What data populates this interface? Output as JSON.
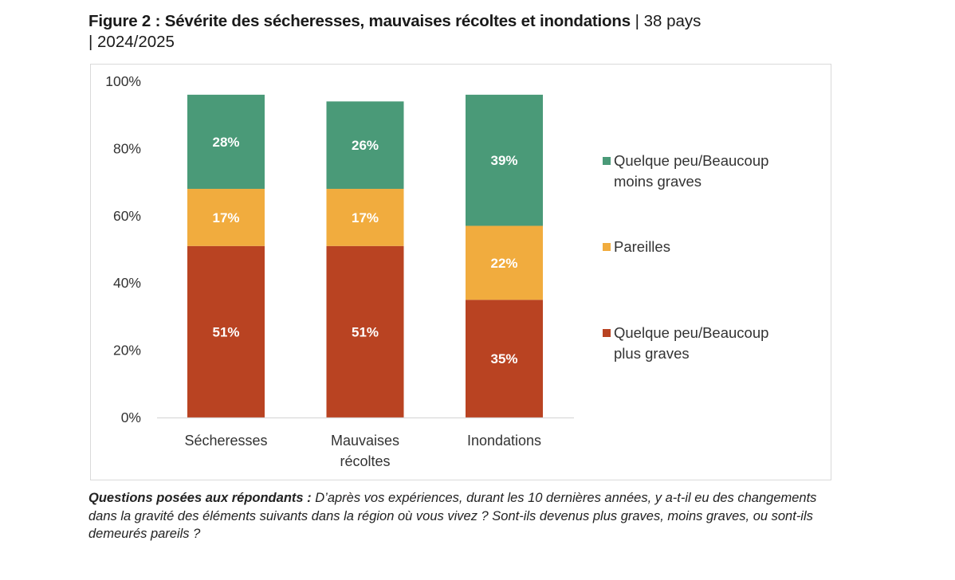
{
  "figure": {
    "title_bold": "Figure 2 : Sévérite des sécheresses, mauvaises récoltes et inondations",
    "title_meta_1": " | 38 pays",
    "title_meta_2": "| 2024/2025"
  },
  "footnote": {
    "label": "Questions posées aux répondants :",
    "text": " D’après vos expériences, durant les 10 dernières années, y a-t-il eu des changements dans la gravité des éléments suivants dans la région où vous vivez ? Sont-ils devenus plus graves, moins graves, ou sont-ils demeurés pareils ?"
  },
  "chart_data": {
    "type": "bar",
    "stacked": true,
    "title": "Figure 2 : Sévérite des sécheresses, mauvaises récoltes et inondations | 38 pays | 2024/2025",
    "xlabel": "",
    "ylabel": "",
    "categories": [
      "Sécheresses",
      "Mauvaises récoltes",
      "Inondations"
    ],
    "category_lines": [
      [
        "Sécheresses"
      ],
      [
        "Mauvaises",
        "récoltes"
      ],
      [
        "Inondations"
      ]
    ],
    "ylim": [
      0,
      100
    ],
    "yticks": [
      0,
      20,
      40,
      60,
      80,
      100
    ],
    "ytick_labels": [
      "0%",
      "20%",
      "40%",
      "60%",
      "80%",
      "100%"
    ],
    "grid": false,
    "legend_position": "right",
    "series": [
      {
        "name": "Quelque peu/Beaucoup plus graves",
        "legend_lines": [
          "Quelque peu/Beaucoup",
          "plus graves"
        ],
        "color": "#b94322",
        "values": [
          51,
          51,
          35
        ],
        "labels": [
          "51%",
          "51%",
          "35%"
        ]
      },
      {
        "name": "Pareilles",
        "legend_lines": [
          "Pareilles"
        ],
        "color": "#f1ac3e",
        "values": [
          17,
          17,
          22
        ],
        "labels": [
          "17%",
          "17%",
          "22%"
        ]
      },
      {
        "name": "Quelque peu/Beaucoup moins graves",
        "legend_lines": [
          "Quelque peu/Beaucoup",
          "moins graves"
        ],
        "color": "#4a9a78",
        "values": [
          28,
          26,
          39
        ],
        "labels": [
          "28%",
          "26%",
          "39%"
        ]
      }
    ],
    "legend_order": [
      2,
      1,
      0
    ]
  }
}
